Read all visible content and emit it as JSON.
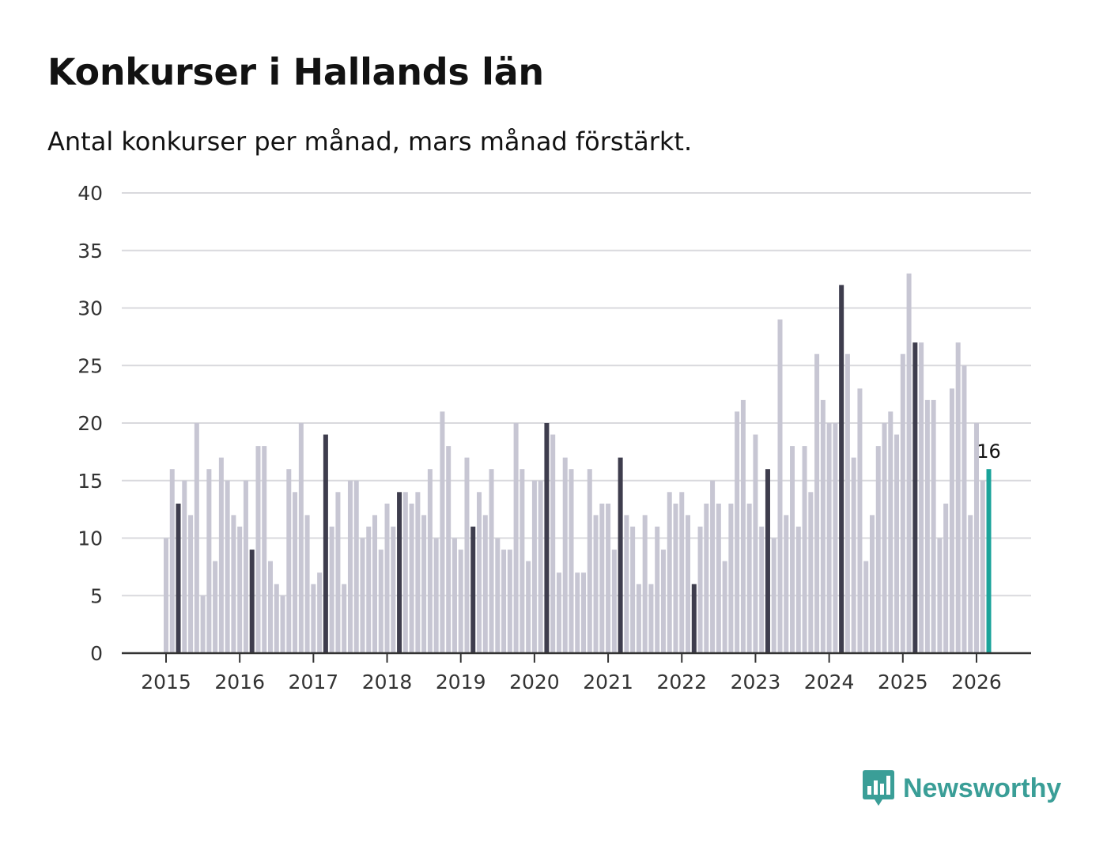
{
  "header": {
    "title": "Konkurser i Hallands län",
    "subtitle": "Antal konkurser per månad, mars månad förstärkt."
  },
  "brand": {
    "name": "Newsworthy",
    "icon": "bar-chart-speech-bubble-icon",
    "color": "#3a9e97"
  },
  "colors": {
    "base": "#c7c6d3",
    "highlight_march": "#3e3d4d",
    "latest": "#1aa39a",
    "grid": "#d9d9dd"
  },
  "chart_data": {
    "type": "bar",
    "title": "Konkurser i Hallands län",
    "subtitle": "Antal konkurser per månad, mars månad förstärkt.",
    "xlabel": "",
    "ylabel": "",
    "ylim": [
      0,
      40
    ],
    "yticks": [
      "0",
      "5",
      "10",
      "15",
      "20",
      "25",
      "30",
      "35",
      "40"
    ],
    "year_labels": [
      "2015",
      "2016",
      "2017",
      "2018",
      "2019",
      "2020",
      "2021",
      "2022",
      "2023",
      "2024",
      "2025",
      "2026"
    ],
    "start": "2015-01",
    "highlight_month": "mars",
    "values": [
      10,
      16,
      13,
      15,
      12,
      20,
      5,
      16,
      8,
      17,
      15,
      12,
      11,
      15,
      9,
      18,
      18,
      8,
      6,
      5,
      16,
      14,
      20,
      12,
      6,
      7,
      19,
      11,
      14,
      6,
      15,
      15,
      10,
      11,
      12,
      9,
      13,
      11,
      14,
      14,
      13,
      14,
      12,
      16,
      10,
      21,
      18,
      10,
      9,
      17,
      11,
      14,
      12,
      16,
      10,
      9,
      9,
      20,
      16,
      8,
      15,
      15,
      20,
      19,
      7,
      17,
      16,
      7,
      7,
      16,
      12,
      13,
      13,
      9,
      17,
      12,
      11,
      6,
      12,
      6,
      11,
      9,
      14,
      13,
      14,
      12,
      6,
      11,
      13,
      15,
      13,
      8,
      13,
      21,
      22,
      13,
      19,
      11,
      16,
      10,
      29,
      12,
      18,
      11,
      18,
      14,
      26,
      22,
      20,
      20,
      32,
      26,
      17,
      23,
      8,
      12,
      18,
      20,
      21,
      19,
      26,
      33,
      27,
      27,
      22,
      22,
      10,
      13,
      23,
      27,
      25,
      12,
      20,
      15,
      16
    ],
    "last_label": "16"
  }
}
